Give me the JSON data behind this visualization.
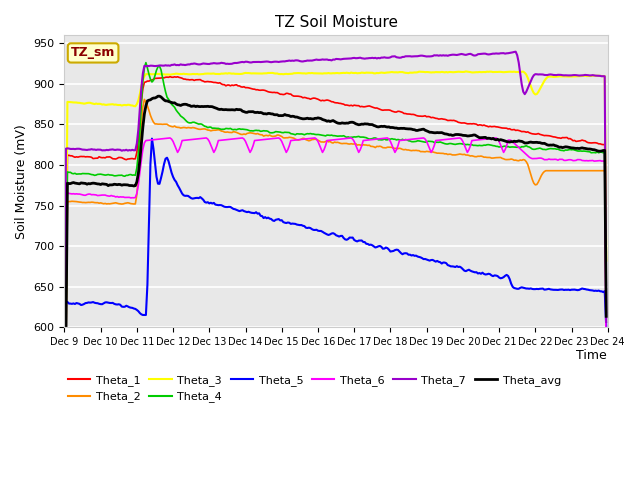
{
  "title": "TZ Soil Moisture",
  "ylabel": "Soil Moisture (mV)",
  "xlabel": "Time",
  "label_box": "TZ_sm",
  "ylim": [
    600,
    960
  ],
  "xlim": [
    0,
    360
  ],
  "yticks": [
    600,
    650,
    700,
    750,
    800,
    850,
    900,
    950
  ],
  "xtick_labels": [
    "Dec 9",
    "Dec 10",
    "Dec 11",
    "Dec 12",
    "Dec 13",
    "Dec 14",
    "Dec 15",
    "Dec 16",
    "Dec 17",
    "Dec 18",
    "Dec 19",
    "Dec 20",
    "Dec 21",
    "Dec 22",
    "Dec 23",
    "Dec 24"
  ],
  "plot_bg_color": "#e8e8e8",
  "grid_color": "#ffffff",
  "colors": {
    "Theta_1": "#ff0000",
    "Theta_2": "#ff8c00",
    "Theta_3": "#ffff00",
    "Theta_4": "#00cc00",
    "Theta_5": "#0000ff",
    "Theta_6": "#ff00ff",
    "Theta_7": "#9900cc",
    "Theta_avg": "#000000"
  }
}
